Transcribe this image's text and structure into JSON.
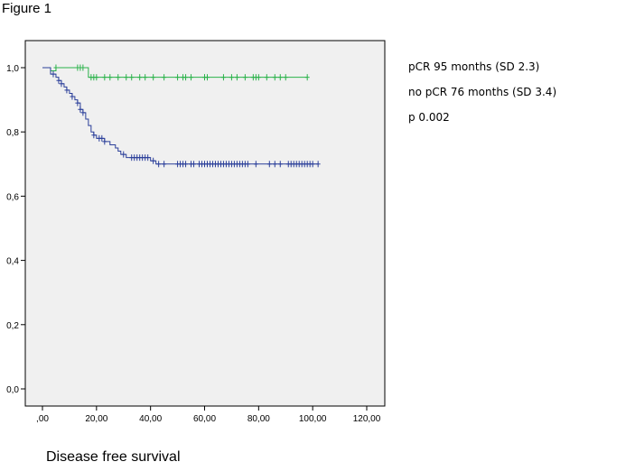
{
  "figure_label": "Figure 1",
  "caption": "Disease free survival",
  "annotations": [
    "pCR 95 months (SD 2.3)",
    "no pCR 76 months (SD 3.4)",
    "p 0.002"
  ],
  "colors": {
    "plot_background": "#f0f0f0",
    "pcr": "#2ab24a",
    "no_pcr": "#2b3f9a",
    "axis": "#000000"
  },
  "chart_data": {
    "type": "line",
    "title": "",
    "xlabel": "",
    "ylabel": "",
    "xlim": [
      0,
      120
    ],
    "ylim": [
      0,
      1
    ],
    "x_ticks": [
      0,
      20,
      40,
      60,
      80,
      100,
      120
    ],
    "x_tick_labels": [
      ",00",
      "20,00",
      "40,00",
      "60,00",
      "80,00",
      "100,00",
      "120,00"
    ],
    "y_ticks": [
      0,
      0.2,
      0.4,
      0.6,
      0.8,
      1.0
    ],
    "y_tick_labels": [
      "0,0",
      "0,2",
      "0,4",
      "0,6",
      "0,8",
      "1,0"
    ],
    "grid": false,
    "step": true,
    "series": [
      {
        "key": "pcr",
        "steps": [
          [
            0,
            1.0
          ],
          [
            3,
            0.99
          ],
          [
            5,
            1.0
          ],
          [
            17,
            0.97
          ],
          [
            98,
            0.97
          ]
        ],
        "censored": [
          5,
          13,
          14,
          15,
          18,
          19,
          20,
          23,
          25,
          28,
          31,
          33,
          36,
          38,
          41,
          45,
          50,
          52,
          53,
          55,
          60,
          61,
          67,
          70,
          72,
          75,
          78,
          79,
          80,
          83,
          86,
          88,
          90,
          98
        ]
      },
      {
        "key": "no_pcr",
        "steps": [
          [
            0,
            1.0
          ],
          [
            3,
            0.98
          ],
          [
            5,
            0.97
          ],
          [
            6,
            0.96
          ],
          [
            7,
            0.95
          ],
          [
            8,
            0.94
          ],
          [
            9,
            0.93
          ],
          [
            10,
            0.92
          ],
          [
            11,
            0.91
          ],
          [
            12,
            0.9
          ],
          [
            13,
            0.89
          ],
          [
            14,
            0.87
          ],
          [
            15,
            0.86
          ],
          [
            16,
            0.84
          ],
          [
            17,
            0.82
          ],
          [
            18,
            0.8
          ],
          [
            19,
            0.79
          ],
          [
            20,
            0.78
          ],
          [
            23,
            0.77
          ],
          [
            25,
            0.76
          ],
          [
            27,
            0.75
          ],
          [
            28,
            0.74
          ],
          [
            29,
            0.73
          ],
          [
            31,
            0.72
          ],
          [
            40,
            0.71
          ],
          [
            42,
            0.7
          ],
          [
            102,
            0.7
          ]
        ],
        "censored": [
          4,
          6,
          7,
          9,
          11,
          13,
          14,
          15,
          19,
          21,
          22,
          23,
          30,
          33,
          34,
          35,
          36,
          37,
          38,
          39,
          41,
          43,
          45,
          50,
          51,
          52,
          53,
          55,
          56,
          58,
          59,
          60,
          61,
          62,
          63,
          64,
          65,
          66,
          67,
          68,
          69,
          70,
          71,
          72,
          73,
          74,
          75,
          76,
          79,
          84,
          86,
          88,
          91,
          92,
          93,
          94,
          95,
          96,
          97,
          98,
          99,
          100,
          102
        ]
      }
    ]
  }
}
